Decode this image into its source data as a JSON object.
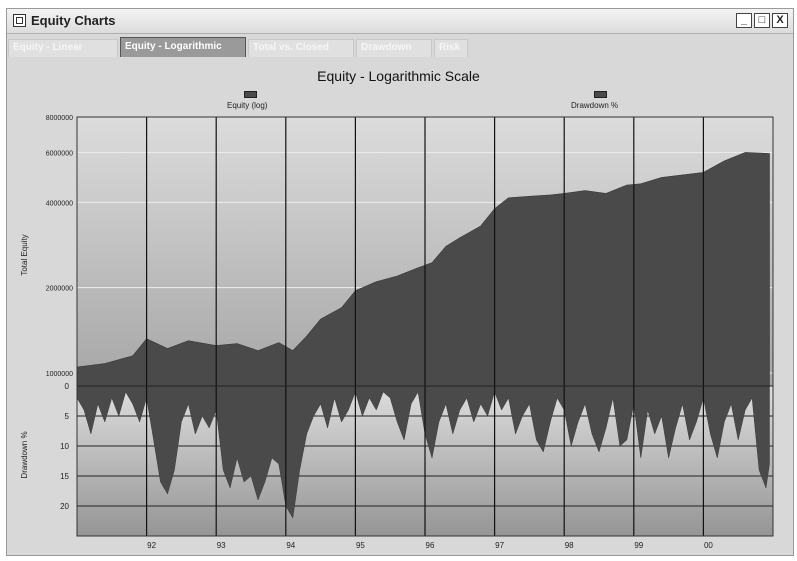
{
  "window": {
    "title": "Equity Charts",
    "controls": {
      "minimize": "_",
      "maximize": "□",
      "close": "X"
    }
  },
  "tabs": [
    {
      "label": "Equity - Linear",
      "active": false
    },
    {
      "label": "Equity - Logarithmic",
      "active": true
    },
    {
      "label": "Total vs. Closed",
      "active": false
    },
    {
      "label": "Drawdown",
      "active": false
    },
    {
      "label": "Risk",
      "active": false
    }
  ],
  "chart": {
    "title": "Equity - Logarithmic Scale",
    "legend": [
      {
        "label": "Equity (log)",
        "color": "#4a4a4a"
      },
      {
        "label": "Drawdown %",
        "color": "#4a4a4a"
      }
    ]
  },
  "chart_data": [
    {
      "type": "area",
      "title": "Equity - Logarithmic Scale",
      "ylabel": "Total Equity",
      "y_scale": "log",
      "ylim": [
        900000,
        8000000
      ],
      "y_ticks": [
        {
          "value": 1000000,
          "label": "1000000"
        },
        {
          "value": 2000000,
          "label": "2000000"
        },
        {
          "value": 4000000,
          "label": "4000000"
        },
        {
          "value": 6000000,
          "label": "6000000"
        },
        {
          "value": 8000000,
          "label": "8000000"
        }
      ],
      "x_ticks": [
        "92",
        "93",
        "94",
        "95",
        "96",
        "97",
        "98",
        "99",
        "00"
      ],
      "xlim": [
        1991,
        2001
      ],
      "grid": true,
      "series": [
        {
          "name": "Equity (log)",
          "color": "#4a4a4a",
          "x": [
            1991.0,
            1991.4,
            1991.8,
            1992.0,
            1992.3,
            1992.6,
            1993.0,
            1993.3,
            1993.6,
            1993.9,
            1994.1,
            1994.3,
            1994.5,
            1994.8,
            1995.0,
            1995.3,
            1995.6,
            1995.9,
            1996.1,
            1996.3,
            1996.5,
            1996.8,
            1997.0,
            1997.2,
            1997.5,
            1997.8,
            1998.0,
            1998.3,
            1998.6,
            1998.9,
            1999.1,
            1999.4,
            1999.7,
            2000.0,
            2000.3,
            2000.6,
            2000.95
          ],
          "values": [
            1050000,
            1080000,
            1150000,
            1320000,
            1220000,
            1300000,
            1250000,
            1270000,
            1200000,
            1280000,
            1200000,
            1350000,
            1550000,
            1700000,
            1950000,
            2100000,
            2200000,
            2350000,
            2450000,
            2800000,
            3000000,
            3300000,
            3800000,
            4150000,
            4200000,
            4250000,
            4300000,
            4400000,
            4300000,
            4600000,
            4650000,
            4900000,
            5000000,
            5100000,
            5600000,
            6000000,
            5950000
          ]
        }
      ]
    },
    {
      "type": "area",
      "ylabel": "Drawdown %",
      "ylim": [
        0,
        25
      ],
      "y_reversed": true,
      "y_ticks": [
        0,
        5,
        10,
        15,
        20
      ],
      "x_ticks": [
        "92",
        "93",
        "94",
        "95",
        "96",
        "97",
        "98",
        "99",
        "00"
      ],
      "xlim": [
        1991,
        2001
      ],
      "grid": true,
      "series": [
        {
          "name": "Drawdown %",
          "color": "#4a4a4a",
          "x": [
            1991.0,
            1991.1,
            1991.2,
            1991.3,
            1991.4,
            1991.5,
            1991.6,
            1991.7,
            1991.8,
            1991.9,
            1992.0,
            1992.1,
            1992.2,
            1992.3,
            1992.4,
            1992.5,
            1992.6,
            1992.7,
            1992.8,
            1992.9,
            1993.0,
            1993.1,
            1993.2,
            1993.3,
            1993.4,
            1993.5,
            1993.6,
            1993.7,
            1993.8,
            1993.9,
            1994.0,
            1994.1,
            1994.2,
            1994.3,
            1994.4,
            1994.5,
            1994.6,
            1994.7,
            1994.8,
            1994.9,
            1995.0,
            1995.1,
            1995.2,
            1995.3,
            1995.4,
            1995.5,
            1995.6,
            1995.7,
            1995.8,
            1995.9,
            1996.0,
            1996.1,
            1996.2,
            1996.3,
            1996.4,
            1996.5,
            1996.6,
            1996.7,
            1996.8,
            1996.9,
            1997.0,
            1997.1,
            1997.2,
            1997.3,
            1997.4,
            1997.5,
            1997.6,
            1997.7,
            1997.8,
            1997.9,
            1998.0,
            1998.1,
            1998.2,
            1998.3,
            1998.4,
            1998.5,
            1998.6,
            1998.7,
            1998.8,
            1998.9,
            1999.0,
            1999.1,
            1999.2,
            1999.3,
            1999.4,
            1999.5,
            1999.6,
            1999.7,
            1999.8,
            1999.9,
            2000.0,
            2000.1,
            2000.2,
            2000.3,
            2000.4,
            2000.5,
            2000.6,
            2000.7,
            2000.8,
            2000.9,
            2000.95
          ],
          "values": [
            2,
            4,
            8,
            3,
            6,
            2,
            5,
            1,
            3,
            6,
            2,
            9,
            16,
            18,
            14,
            6,
            3,
            8,
            5,
            7,
            4,
            14,
            17,
            12,
            16,
            15,
            19,
            16,
            12,
            13,
            20,
            22,
            14,
            8,
            5,
            3,
            7,
            2,
            6,
            4,
            1,
            5,
            2,
            4,
            1,
            2,
            6,
            9,
            3,
            1,
            8,
            12,
            6,
            3,
            8,
            4,
            2,
            6,
            3,
            5,
            1,
            4,
            2,
            8,
            5,
            3,
            9,
            11,
            6,
            2,
            4,
            10,
            6,
            3,
            8,
            11,
            7,
            2,
            10,
            9,
            3,
            12,
            4,
            8,
            5,
            12,
            7,
            3,
            9,
            6,
            2,
            8,
            12,
            6,
            3,
            9,
            4,
            2,
            14,
            17,
            13
          ]
        }
      ]
    }
  ]
}
